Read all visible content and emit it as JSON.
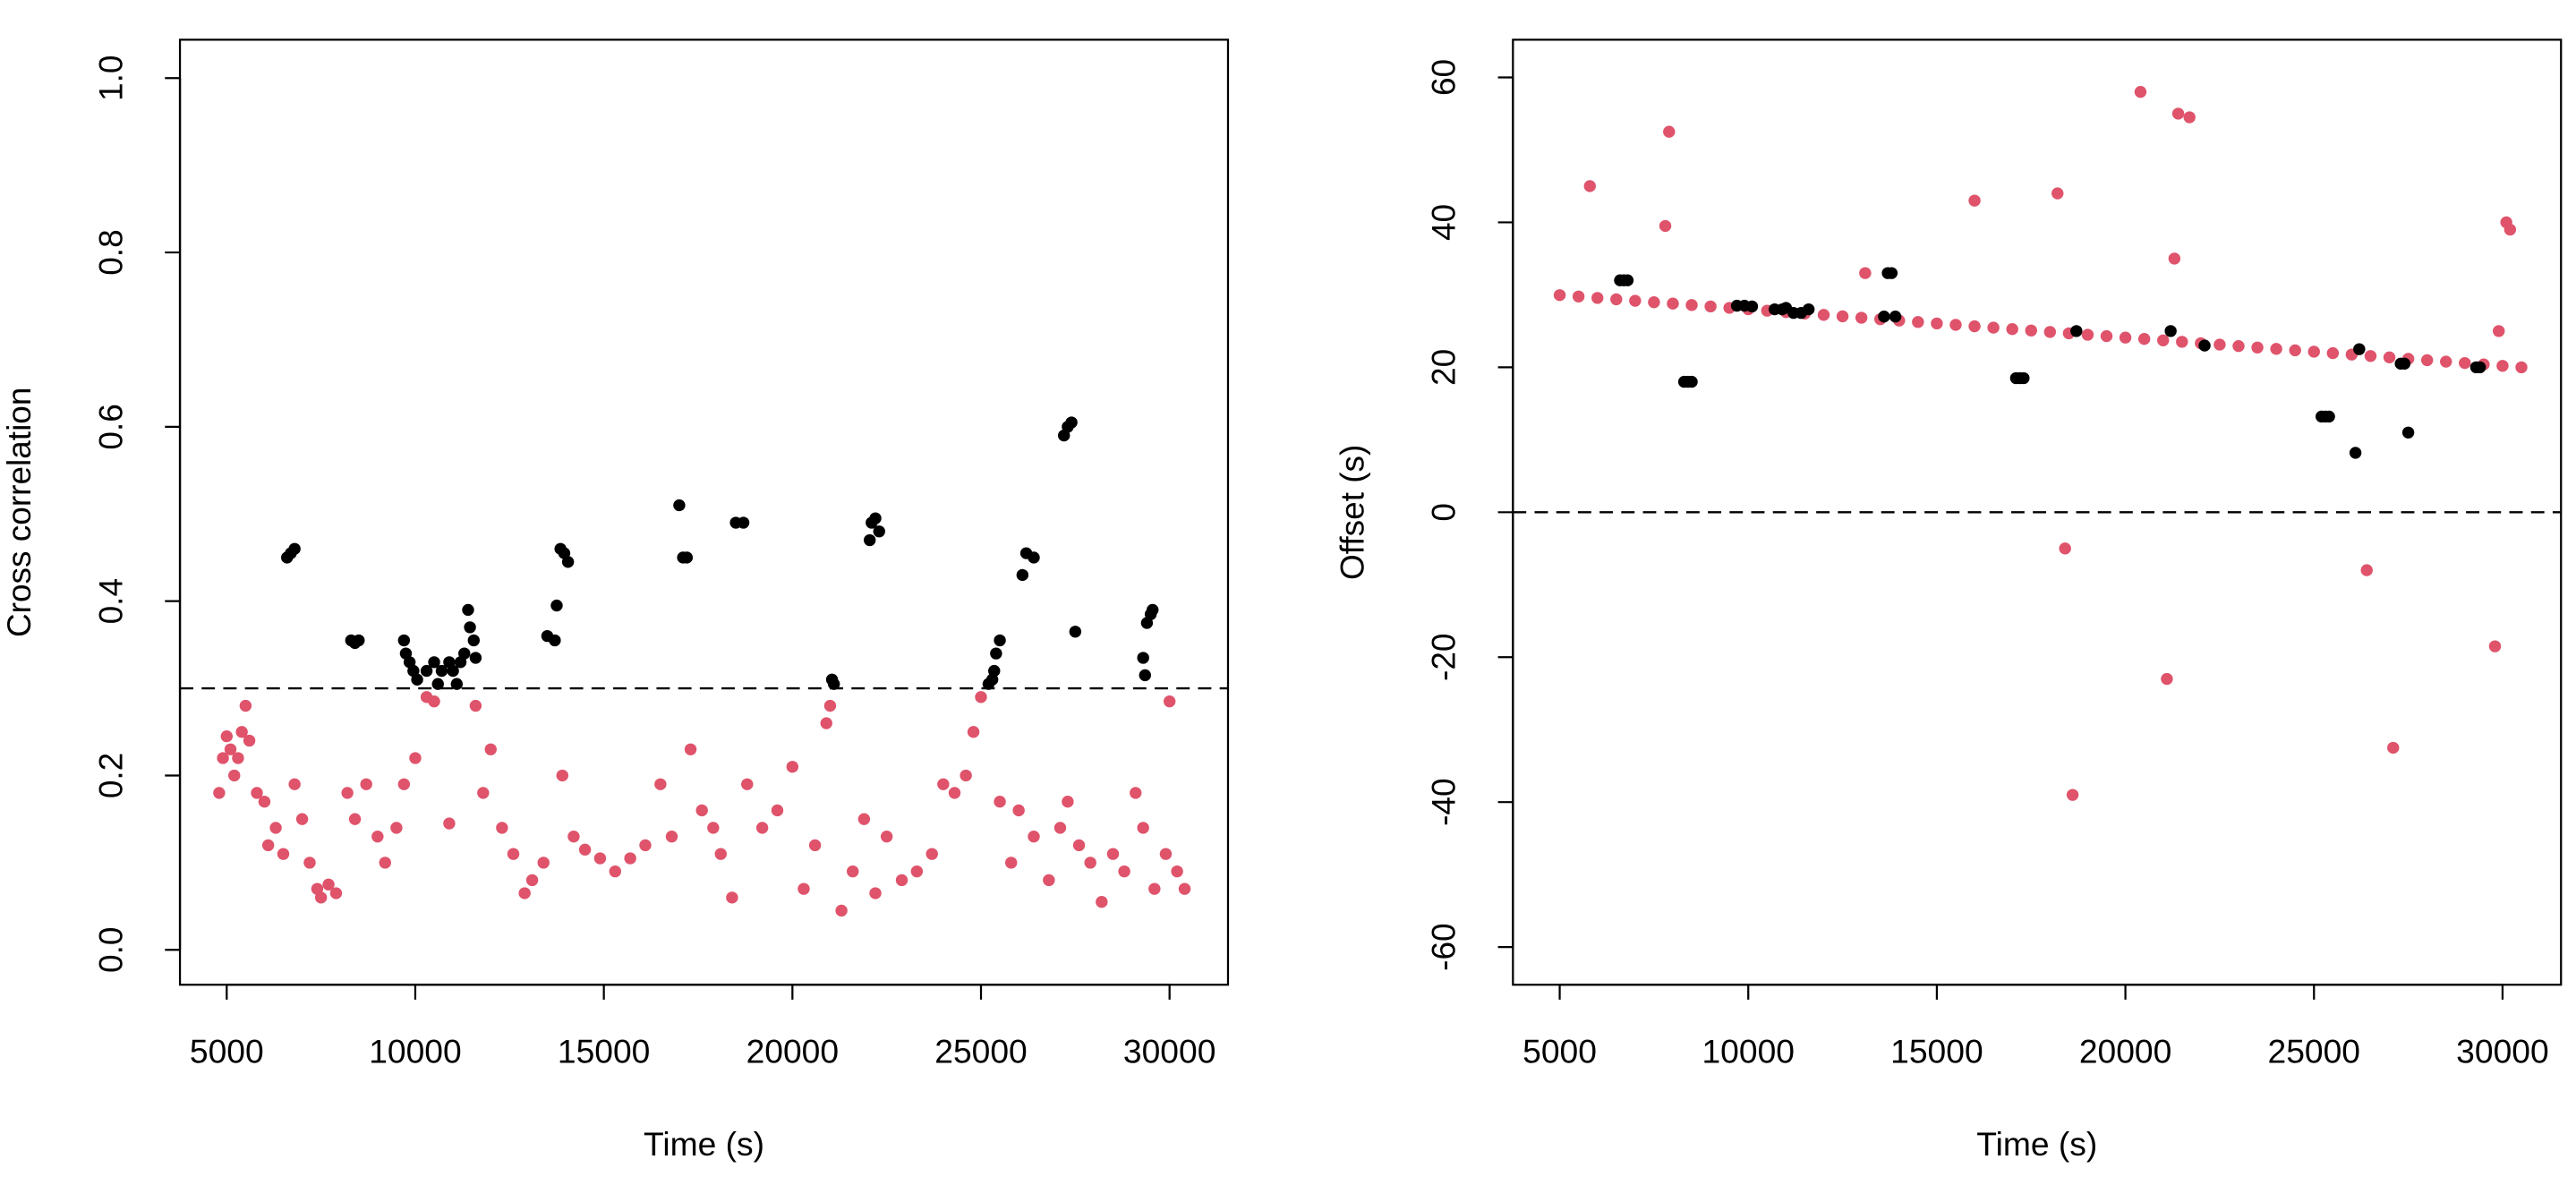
{
  "chart_data": [
    {
      "type": "scatter",
      "xlabel": "Time (s)",
      "ylabel": "Cross correlation",
      "xlim": [
        3760,
        31550
      ],
      "ylim": [
        -0.04,
        1.044
      ],
      "xticks": [
        5000,
        10000,
        15000,
        20000,
        25000,
        30000
      ],
      "yticks": [
        {
          "value": 0,
          "label": "0.0"
        },
        0.2,
        0.4,
        0.6,
        0.8,
        {
          "value": 1,
          "label": "1.0"
        }
      ],
      "hline": 0.3,
      "series": [
        {
          "color": "#DF536B",
          "x": [
            4800,
            4900,
            5000,
            5100,
            5200,
            5300,
            5400,
            5500,
            5600,
            5800,
            6000,
            6100,
            6300,
            6500,
            6800,
            7000,
            7200,
            7400,
            7500,
            7700,
            7900,
            8200,
            8400,
            8700,
            9000,
            9200,
            9500,
            9700,
            10000,
            10300,
            10500,
            10900,
            11600,
            11800,
            12000,
            12300,
            12600,
            12900,
            13100,
            13400,
            13900,
            14200,
            14500,
            14900,
            15300,
            15700,
            16100,
            16500,
            16800,
            17300,
            17600,
            17900,
            18100,
            18400,
            18800,
            19200,
            19600,
            20000,
            20300,
            20600,
            20900,
            21000,
            21300,
            21600,
            21900,
            22200,
            22500,
            22900,
            23300,
            23700,
            24000,
            24300,
            24600,
            24800,
            25000,
            25500,
            25800,
            26000,
            26400,
            26800,
            27100,
            27300,
            27600,
            27900,
            28200,
            28500,
            28800,
            29100,
            29300,
            29600,
            29900,
            30000,
            30200,
            30400
          ],
          "values": [
            0.18,
            0.22,
            0.245,
            0.23,
            0.2,
            0.22,
            0.25,
            0.28,
            0.24,
            0.18,
            0.17,
            0.12,
            0.14,
            0.11,
            0.19,
            0.15,
            0.1,
            0.07,
            0.06,
            0.075,
            0.065,
            0.18,
            0.15,
            0.19,
            0.13,
            0.1,
            0.14,
            0.19,
            0.22,
            0.29,
            0.285,
            0.145,
            0.28,
            0.18,
            0.23,
            0.14,
            0.11,
            0.065,
            0.08,
            0.1,
            0.2,
            0.13,
            0.115,
            0.105,
            0.09,
            0.105,
            0.12,
            0.19,
            0.13,
            0.23,
            0.16,
            0.14,
            0.11,
            0.06,
            0.19,
            0.14,
            0.16,
            0.21,
            0.07,
            0.12,
            0.26,
            0.28,
            0.045,
            0.09,
            0.15,
            0.065,
            0.13,
            0.08,
            0.09,
            0.11,
            0.19,
            0.18,
            0.2,
            0.25,
            0.29,
            0.17,
            0.1,
            0.16,
            0.13,
            0.08,
            0.14,
            0.17,
            0.12,
            0.1,
            0.055,
            0.11,
            0.09,
            0.18,
            0.14,
            0.07,
            0.11,
            0.285,
            0.09,
            0.07
          ]
        },
        {
          "color": "#000000",
          "x": [
            6600,
            6700,
            6800,
            8300,
            8400,
            8500,
            9700,
            9750,
            9850,
            9950,
            10050,
            10300,
            10500,
            10600,
            10700,
            10900,
            11000,
            11100,
            11200,
            11300,
            11400,
            11450,
            11550,
            11600,
            13500,
            13700,
            13750,
            13850,
            13950,
            14050,
            17000,
            17100,
            17200,
            18500,
            18700,
            21050,
            21100,
            22050,
            22100,
            22200,
            22300,
            25200,
            25300,
            25350,
            25400,
            25500,
            26100,
            26200,
            26400,
            27200,
            27300,
            27400,
            27500,
            29300,
            29350,
            29400,
            29500,
            29550
          ],
          "values": [
            0.45,
            0.455,
            0.46,
            0.355,
            0.352,
            0.355,
            0.355,
            0.34,
            0.33,
            0.32,
            0.31,
            0.32,
            0.33,
            0.305,
            0.32,
            0.33,
            0.32,
            0.305,
            0.33,
            0.34,
            0.39,
            0.37,
            0.355,
            0.335,
            0.36,
            0.355,
            0.395,
            0.46,
            0.455,
            0.445,
            0.51,
            0.45,
            0.45,
            0.49,
            0.49,
            0.31,
            0.305,
            0.47,
            0.49,
            0.495,
            0.48,
            0.305,
            0.31,
            0.32,
            0.34,
            0.355,
            0.43,
            0.455,
            0.45,
            0.59,
            0.6,
            0.605,
            0.365,
            0.335,
            0.315,
            0.375,
            0.385,
            0.39
          ]
        }
      ]
    },
    {
      "type": "scatter",
      "xlabel": "Time (s)",
      "ylabel": "Offset (s)",
      "xlim": [
        3760,
        31550
      ],
      "ylim": [
        -65.2,
        65.2
      ],
      "xticks": [
        5000,
        10000,
        15000,
        20000,
        25000,
        30000
      ],
      "yticks": [
        -60,
        -40,
        -20,
        0,
        20,
        40,
        60
      ],
      "hline": 0,
      "series": [
        {
          "color": "#DF536B",
          "x": [
            5000,
            5500,
            6000,
            6500,
            7000,
            7500,
            8000,
            8500,
            9000,
            9500,
            10000,
            10500,
            11000,
            11500,
            12000,
            12500,
            13000,
            13500,
            14000,
            14500,
            15000,
            15500,
            16000,
            16500,
            17000,
            17500,
            18000,
            18500,
            19000,
            19500,
            20000,
            20500,
            21000,
            21500,
            22000,
            22500,
            23000,
            23500,
            24000,
            24500,
            25000,
            25500,
            26000,
            26500,
            27000,
            27500,
            28000,
            28500,
            29000,
            29500,
            30000,
            30500,
            5800,
            7800,
            7900,
            13100,
            16000,
            18200,
            18400,
            18600,
            20400,
            21100,
            21300,
            21400,
            21700,
            26400,
            27100,
            29800,
            29900,
            30100,
            30200
          ],
          "values": [
            29.96,
            29.77,
            29.57,
            29.38,
            29.18,
            28.98,
            28.79,
            28.59,
            28.4,
            28.2,
            28.01,
            27.81,
            27.62,
            27.42,
            27.23,
            27.03,
            26.84,
            26.64,
            26.45,
            26.25,
            26.05,
            25.86,
            25.66,
            25.47,
            25.27,
            25.08,
            24.88,
            24.69,
            24.49,
            24.3,
            24.1,
            23.91,
            23.71,
            23.52,
            23.32,
            23.13,
            22.93,
            22.73,
            22.54,
            22.34,
            22.15,
            21.95,
            21.76,
            21.56,
            21.37,
            21.17,
            20.98,
            20.78,
            20.59,
            20.39,
            20.2,
            20,
            45,
            39.5,
            52.5,
            33,
            43,
            44,
            -5,
            -39,
            58,
            -23,
            35,
            55,
            54.5,
            -8,
            -32.5,
            -18.5,
            25,
            40,
            39
          ]
        },
        {
          "color": "#000000",
          "x": [
            6600,
            6700,
            6800,
            8300,
            8400,
            8500,
            9700,
            9900,
            10100,
            10700,
            10900,
            11000,
            11200,
            11400,
            11600,
            13600,
            13700,
            13800,
            13900,
            17100,
            17200,
            17300,
            18700,
            21200,
            22100,
            25200,
            25300,
            25400,
            26100,
            26200,
            27300,
            27400,
            27500,
            29300,
            29400
          ],
          "values": [
            32,
            32,
            32,
            18,
            18,
            18,
            28.5,
            28.5,
            28.4,
            28,
            28,
            28.2,
            27.5,
            27.5,
            28,
            27,
            33,
            33,
            27,
            18.5,
            18.5,
            18.5,
            25,
            25,
            23,
            13.2,
            13.2,
            13.2,
            8.2,
            22.5,
            20.5,
            20.5,
            11,
            20,
            20
          ]
        }
      ]
    }
  ]
}
